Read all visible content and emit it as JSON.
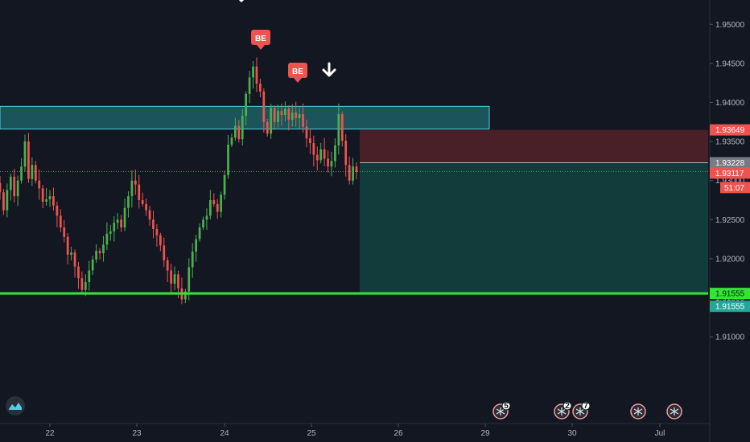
{
  "chart_data": {
    "type": "candlestick",
    "symbol_pair_hint": "",
    "ylim": [
      1.9075,
      1.95
    ],
    "y_ticks": [
      1.91,
      1.915,
      1.92,
      1.925,
      1.93,
      1.935,
      1.94,
      1.945,
      1.95
    ],
    "y_tick_labels": [
      "1.91000",
      "1.91500",
      "1.92000",
      "1.92500",
      "1.93000",
      "1.93500",
      "1.94000",
      "1.94500",
      "1.95000"
    ],
    "x_range": [
      21.5,
      31.1
    ],
    "x_ticks": [
      {
        "x": 22,
        "label": "22"
      },
      {
        "x": 23,
        "label": "23"
      },
      {
        "x": 24,
        "label": "24"
      },
      {
        "x": 25,
        "label": "25"
      },
      {
        "x": 26,
        "label": "26"
      },
      {
        "x": 29,
        "label": "29"
      },
      {
        "x": 30,
        "label": "30"
      },
      {
        "x": 31,
        "label": "Jul"
      }
    ],
    "colors": {
      "up": "#26a69a",
      "up_bright": "#4caf50",
      "down": "#ef5350",
      "background": "#131722",
      "axis_text": "#b2b5be",
      "zone_fill": "#1e5f66",
      "zone_border": "#4dd0e1",
      "target_line": "#33e633",
      "stop_fill": "#4a2028",
      "profit_fill": "#123b3c",
      "entry_line": "#b2b5be",
      "price_badge": "#ef5350",
      "entry_badge": "#787b86",
      "target_badge": "#33e633",
      "be_marker": "#ef5350"
    },
    "candles_close": [
      1.9285,
      1.9262,
      1.9288,
      1.9305,
      1.928,
      1.93,
      1.9318,
      1.935,
      1.9302,
      1.932,
      1.93,
      1.929,
      1.9273,
      1.9276,
      1.928,
      1.9268,
      1.9255,
      1.924,
      1.9228,
      1.9205,
      1.9208,
      1.919,
      1.9175,
      1.916,
      1.917,
      1.9185,
      1.9199,
      1.921,
      1.9207,
      1.9218,
      1.9232,
      1.9235,
      1.9246,
      1.925,
      1.924,
      1.9265,
      1.928,
      1.93,
      1.9295,
      1.9275,
      1.927,
      1.9262,
      1.925,
      1.9238,
      1.923,
      1.9217,
      1.9198,
      1.9185,
      1.9168,
      1.918,
      1.9162,
      1.9148,
      1.9158,
      1.9189,
      1.9209,
      1.9225,
      1.924,
      1.925,
      1.9255,
      1.9275,
      1.927,
      1.926,
      1.9282,
      1.9307,
      1.9346,
      1.9355,
      1.937,
      1.9353,
      1.9383,
      1.9411,
      1.9432,
      1.9446,
      1.9424,
      1.9414,
      1.9375,
      1.936,
      1.9393,
      1.9375,
      1.9389,
      1.9384,
      1.9392,
      1.9378,
      1.9387,
      1.938,
      1.9385,
      1.9369,
      1.9354,
      1.9348,
      1.9333,
      1.9326,
      1.934,
      1.9328,
      1.9318,
      1.9325,
      1.9345,
      1.9385,
      1.9351,
      1.932,
      1.93,
      1.9318,
      1.9311
    ],
    "levels": {
      "entry": 1.93228,
      "stop": 1.93649,
      "current_price": 1.93117,
      "target": 1.91555,
      "resistance_zone": [
        1.9366,
        1.9395
      ]
    },
    "annotations": {
      "be_label": "BE",
      "current_price_label": "1.93117",
      "countdown_label": "51:07",
      "stop_label": "1.93649",
      "entry_label": "1.93228",
      "target_label_1": "1.91555",
      "target_label_2": "1.91555"
    },
    "event_badges": [
      {
        "x": 29.2,
        "count": "5"
      },
      {
        "x": 29.93,
        "count": "2"
      },
      {
        "x": 30.08,
        "count": "7"
      },
      {
        "x": 30.75,
        "count": ""
      },
      {
        "x": 31.18,
        "count": ""
      }
    ]
  }
}
